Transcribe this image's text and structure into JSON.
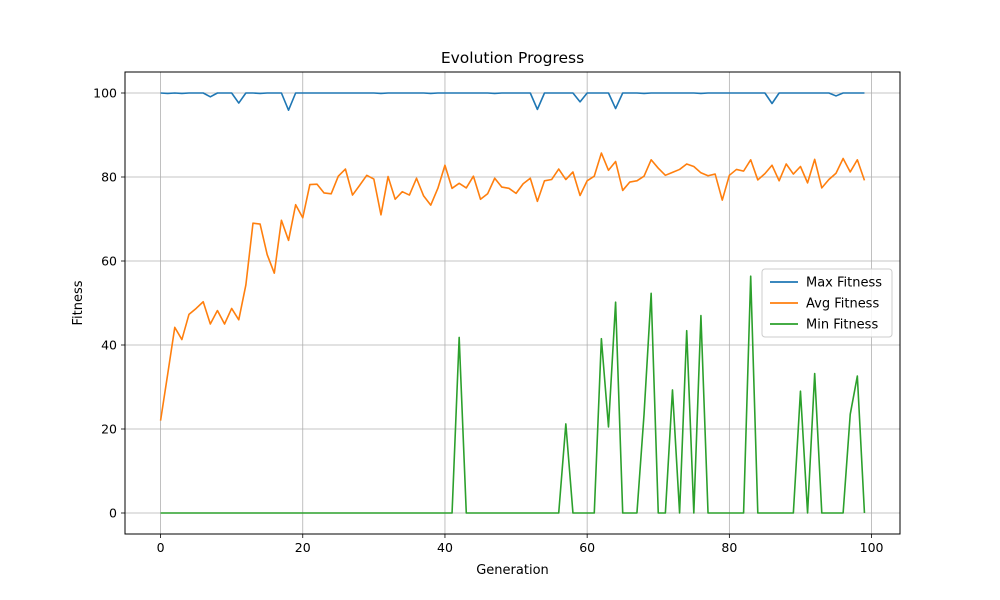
{
  "chart_data": {
    "type": "line",
    "title": "Evolution Progress",
    "xlabel": "Generation",
    "ylabel": "Fitness",
    "xlim": [
      -5,
      104
    ],
    "ylim": [
      -5,
      105
    ],
    "xticks": [
      0,
      20,
      40,
      60,
      80,
      100
    ],
    "yticks": [
      0,
      20,
      40,
      60,
      80,
      100
    ],
    "grid": true,
    "legend_position": "center-right",
    "x": [
      0,
      1,
      2,
      3,
      4,
      5,
      6,
      7,
      8,
      9,
      10,
      11,
      12,
      13,
      14,
      15,
      16,
      17,
      18,
      19,
      20,
      21,
      22,
      23,
      24,
      25,
      26,
      27,
      28,
      29,
      30,
      31,
      32,
      33,
      34,
      35,
      36,
      37,
      38,
      39,
      40,
      41,
      42,
      43,
      44,
      45,
      46,
      47,
      48,
      49,
      50,
      51,
      52,
      53,
      54,
      55,
      56,
      57,
      58,
      59,
      60,
      61,
      62,
      63,
      64,
      65,
      66,
      67,
      68,
      69,
      70,
      71,
      72,
      73,
      74,
      75,
      76,
      77,
      78,
      79,
      80,
      81,
      82,
      83,
      84,
      85,
      86,
      87,
      88,
      89,
      90,
      91,
      92,
      93,
      94,
      95,
      96,
      97,
      98,
      99
    ],
    "series": [
      {
        "name": "Max Fitness",
        "color": "#1f77b4",
        "values": [
          100,
          99.9,
          100,
          99.9,
          100,
          100,
          100,
          99.1,
          100,
          100,
          100,
          97.6,
          100,
          100,
          99.9,
          100,
          100,
          100,
          95.9,
          100,
          100,
          100,
          100,
          100,
          100,
          100,
          100,
          100,
          100,
          100,
          100,
          99.9,
          100,
          100,
          100,
          100,
          100,
          100,
          99.9,
          100,
          100,
          100,
          100,
          100,
          100,
          100,
          100,
          99.9,
          100,
          100,
          100,
          100,
          100,
          96.1,
          100,
          100,
          100,
          100,
          100,
          97.9,
          100,
          100,
          100,
          100,
          96.3,
          100,
          100,
          100,
          99.9,
          100,
          100,
          100,
          100,
          100,
          100,
          100,
          99.9,
          100,
          100,
          100,
          100,
          100,
          100,
          100,
          100,
          100,
          97.5,
          100,
          100,
          100,
          100,
          100,
          100,
          100,
          100,
          99.3,
          100,
          100,
          100,
          100
        ]
      },
      {
        "name": "Avg Fitness",
        "color": "#ff7f0e",
        "values": [
          22,
          33,
          44.2,
          41.3,
          47.3,
          48.7,
          50.3,
          45,
          48.2,
          45,
          48.7,
          46,
          54.3,
          69,
          68.8,
          61.5,
          57.1,
          69.7,
          64.9,
          73.4,
          70.3,
          78.2,
          78.3,
          76.2,
          76,
          80.2,
          81.9,
          75.7,
          78,
          80.4,
          79.5,
          71,
          80.1,
          74.7,
          76.5,
          75.7,
          79.7,
          75.5,
          73.3,
          77.3,
          82.8,
          77.3,
          78.5,
          77.4,
          80.2,
          74.7,
          76,
          79.7,
          77.6,
          77.3,
          76.1,
          78.4,
          79.7,
          74.2,
          79.1,
          79.4,
          81.9,
          79.4,
          81.2,
          75.6,
          79.1,
          80.2,
          85.7,
          81.6,
          83.7,
          76.8,
          78.8,
          79.1,
          80.2,
          84.1,
          82.1,
          80.4,
          81.1,
          81.8,
          83.1,
          82.5,
          81,
          80.3,
          80.7,
          74.5,
          80.4,
          81.8,
          81.4,
          84.1,
          79.3,
          80.8,
          82.8,
          79.1,
          83.1,
          80.7,
          82.5,
          78.6,
          84.2,
          77.4,
          79.4,
          80.9,
          84.4,
          81.2,
          84.1,
          79.2
        ]
      },
      {
        "name": "Min Fitness",
        "color": "#2ca02c",
        "values": [
          0,
          0,
          0,
          0,
          0,
          0,
          0,
          0,
          0,
          0,
          0,
          0,
          0,
          0,
          0,
          0,
          0,
          0,
          0,
          0,
          0,
          0,
          0,
          0,
          0,
          0,
          0,
          0,
          0,
          0,
          0,
          0,
          0,
          0,
          0,
          0,
          0,
          0,
          0,
          0,
          0,
          0,
          41.8,
          0,
          0,
          0,
          0,
          0,
          0,
          0,
          0,
          0,
          0,
          0,
          0,
          0,
          0,
          21.2,
          0,
          0,
          0,
          0,
          41.5,
          20.5,
          50.2,
          0,
          0,
          0,
          23.5,
          52.3,
          0,
          0,
          29.3,
          0,
          43.4,
          0,
          47,
          0,
          0,
          0,
          0,
          0,
          0,
          56.4,
          0,
          0,
          0,
          0,
          0,
          0,
          29,
          0,
          33.2,
          0,
          0,
          0,
          0,
          23.5,
          32.6,
          0
        ]
      }
    ]
  }
}
